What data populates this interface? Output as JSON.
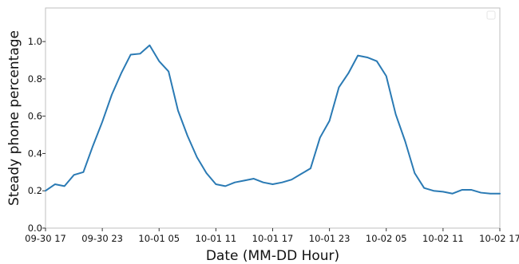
{
  "chart_data": {
    "type": "line",
    "xlabel": "Date (MM-DD Hour)",
    "ylabel": "Steady phone  percentage",
    "xlim": [
      0,
      48
    ],
    "ylim": [
      0,
      1.18
    ],
    "grid": false,
    "x_ticks": [
      {
        "x": 0,
        "label": "09-30 17"
      },
      {
        "x": 6,
        "label": "09-30 23"
      },
      {
        "x": 12,
        "label": "10-01 05"
      },
      {
        "x": 18,
        "label": "10-01 11"
      },
      {
        "x": 24,
        "label": "10-01 17"
      },
      {
        "x": 30,
        "label": "10-01 23"
      },
      {
        "x": 36,
        "label": "10-02 05"
      },
      {
        "x": 42,
        "label": "10-02 11"
      },
      {
        "x": 48,
        "label": "10-02 17"
      }
    ],
    "y_ticks": [
      0.0,
      0.2,
      0.4,
      0.6,
      0.8,
      1.0
    ],
    "y_tick_labels": [
      "0.0",
      "0.2",
      "0.4",
      "0.6",
      "0.8",
      "1.0"
    ],
    "series": [
      {
        "color": "#2a7ab4",
        "x": [
          0,
          1,
          2,
          3,
          4,
          5,
          6,
          7,
          8,
          9,
          10,
          11,
          12,
          13,
          14,
          15,
          16,
          17,
          18,
          19,
          20,
          21,
          22,
          23,
          24,
          25,
          26,
          27,
          28,
          29,
          30,
          31,
          32,
          33,
          34,
          35,
          36,
          37,
          38,
          39,
          40,
          41,
          42,
          43,
          44,
          45,
          46,
          47,
          48
        ],
        "y": [
          0.2,
          0.235,
          0.225,
          0.285,
          0.3,
          0.44,
          0.57,
          0.715,
          0.83,
          0.93,
          0.935,
          0.98,
          0.895,
          0.84,
          0.63,
          0.495,
          0.38,
          0.295,
          0.235,
          0.225,
          0.245,
          0.255,
          0.265,
          0.245,
          0.235,
          0.245,
          0.26,
          0.29,
          0.32,
          0.485,
          0.575,
          0.755,
          0.83,
          0.925,
          0.915,
          0.895,
          0.815,
          0.61,
          0.465,
          0.295,
          0.215,
          0.2,
          0.195,
          0.185,
          0.205,
          0.205,
          0.19,
          0.185,
          0.185
        ]
      }
    ],
    "legend": {
      "position": "top-right",
      "entries": [
        ""
      ]
    }
  }
}
